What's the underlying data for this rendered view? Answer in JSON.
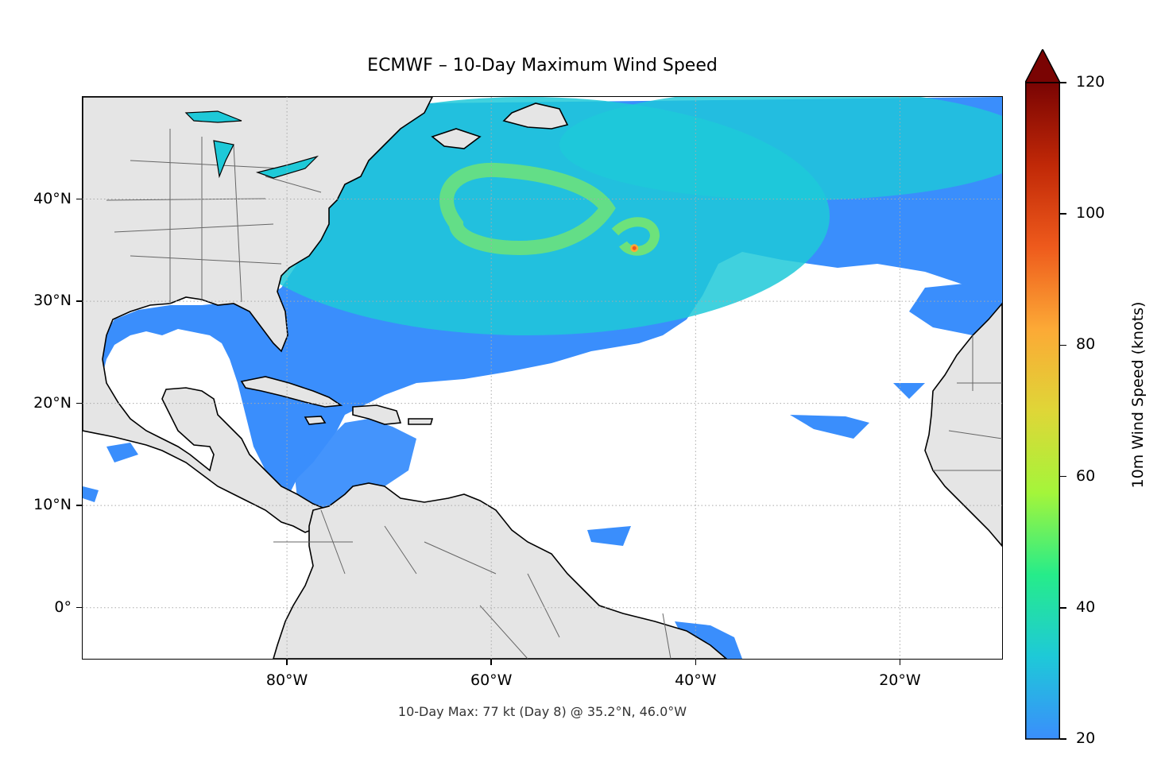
{
  "title": "ECMWF – 10-Day Maximum Wind Speed",
  "annotation": "10-Day Max: 77 kt (Day 8) @ 35.2°N, 46.0°W",
  "map": {
    "projection": "PlateCarree",
    "lon_range": [
      -100,
      -10
    ],
    "lat_range": [
      -5,
      50
    ],
    "gridlines": "dotted gray",
    "land_color": "#e5e5e5",
    "ocean_color": "#ffffff",
    "y_ticks": [
      {
        "lat": 40,
        "label": "40°N"
      },
      {
        "lat": 30,
        "label": "30°N"
      },
      {
        "lat": 20,
        "label": "20°N"
      },
      {
        "lat": 10,
        "label": "10°N"
      },
      {
        "lat": 0,
        "label": "0°"
      }
    ],
    "x_ticks": [
      {
        "lon": -80,
        "label": "80°W"
      },
      {
        "lon": -60,
        "label": "60°W"
      },
      {
        "lon": -40,
        "label": "40°W"
      },
      {
        "lon": -20,
        "label": "20°W"
      }
    ],
    "max_point": {
      "lat": 35.2,
      "lon": -46.0,
      "value_kt": 77,
      "day": 8
    }
  },
  "colorbar": {
    "label": "10m Wind Speed (knots)",
    "min": 20,
    "max": 120,
    "extend": "max",
    "ticks": [
      "20",
      "40",
      "60",
      "80",
      "100",
      "120"
    ],
    "colors": [
      "#3a8efc",
      "#1ec9d8",
      "#26ec8a",
      "#a4f53a",
      "#dfd637",
      "#fca936",
      "#ee5a1c",
      "#c02807",
      "#7a0403"
    ]
  }
}
